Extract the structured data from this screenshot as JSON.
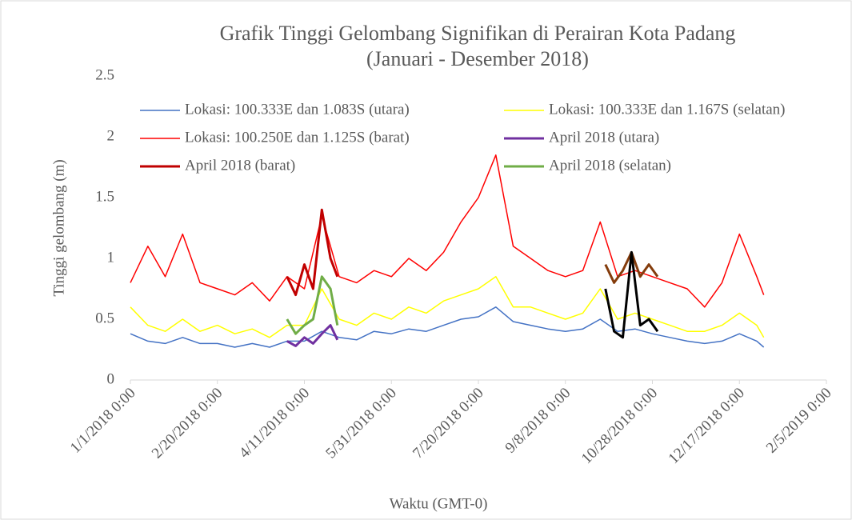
{
  "chart_data": {
    "type": "line",
    "title": "Grafik Tinggi  Gelombang  Signifikan  di Perairan Kota Padang",
    "subtitle": "(Januari  - Desember  2018)",
    "x_label": "Waktu (GMT-0)",
    "y_label": "Tinggi gelombang (m)",
    "x": [
      "1/1/2018 0:00",
      "1/11/2018 0:00",
      "1/21/2018 0:00",
      "1/31/2018 0:00",
      "2/10/2018 0:00",
      "2/20/2018 0:00",
      "3/2/2018 0:00",
      "3/12/2018 0:00",
      "3/22/2018 0:00",
      "4/1/2018 0:00",
      "4/11/2018 0:00",
      "4/21/2018 0:00",
      "5/1/2018 0:00",
      "5/11/2018 0:00",
      "5/21/2018 0:00",
      "5/31/2018 0:00",
      "6/10/2018 0:00",
      "6/20/2018 0:00",
      "6/30/2018 0:00",
      "7/10/2018 0:00",
      "7/20/2018 0:00",
      "7/30/2018 0:00",
      "8/9/2018 0:00",
      "8/19/2018 0:00",
      "8/29/2018 0:00",
      "9/8/2018 0:00",
      "9/18/2018 0:00",
      "9/28/2018 0:00",
      "10/8/2018 0:00",
      "10/18/2018 0:00",
      "10/28/2018 0:00",
      "11/7/2018 0:00",
      "11/17/2018 0:00",
      "11/27/2018 0:00",
      "12/7/2018 0:00",
      "12/17/2018 0:00",
      "12/27/2018 0:00",
      "12/31/2018 0:00"
    ],
    "series": [
      {
        "name": "Lokasi: 100.333E dan 1.083S (utara)",
        "color": "#4472c4",
        "line_width": 1.5,
        "values": [
          0.38,
          0.32,
          0.3,
          0.35,
          0.3,
          0.3,
          0.27,
          0.3,
          0.27,
          0.32,
          0.32,
          0.4,
          0.35,
          0.33,
          0.4,
          0.38,
          0.42,
          0.4,
          0.45,
          0.5,
          0.52,
          0.6,
          0.48,
          0.45,
          0.42,
          0.4,
          0.42,
          0.5,
          0.4,
          0.42,
          0.38,
          0.35,
          0.32,
          0.3,
          0.32,
          0.38,
          0.32,
          0.27
        ]
      },
      {
        "name": "Lokasi: 100.333E dan 1.167S (selatan)",
        "color": "#ffff00",
        "line_width": 1.5,
        "values": [
          0.6,
          0.45,
          0.4,
          0.5,
          0.4,
          0.45,
          0.38,
          0.42,
          0.35,
          0.45,
          0.45,
          0.75,
          0.5,
          0.45,
          0.55,
          0.5,
          0.6,
          0.55,
          0.65,
          0.7,
          0.75,
          0.85,
          0.6,
          0.6,
          0.55,
          0.5,
          0.55,
          0.75,
          0.5,
          0.55,
          0.5,
          0.45,
          0.4,
          0.4,
          0.45,
          0.55,
          0.45,
          0.35
        ]
      },
      {
        "name": "Lokasi: 100.250E dan 1.125S (barat)",
        "color": "#ff0000",
        "line_width": 1.5,
        "values": [
          0.8,
          1.1,
          0.85,
          1.2,
          0.8,
          0.75,
          0.7,
          0.8,
          0.65,
          0.85,
          0.75,
          1.35,
          0.85,
          0.8,
          0.9,
          0.85,
          1.0,
          0.9,
          1.05,
          1.3,
          1.5,
          1.85,
          1.1,
          1.0,
          0.9,
          0.85,
          0.9,
          1.3,
          0.85,
          0.9,
          0.85,
          0.8,
          0.75,
          0.6,
          0.8,
          1.2,
          0.85,
          0.7
        ]
      },
      {
        "name": "April 2018 (utara)",
        "color": "#7030a0",
        "line_width": 3,
        "x": [
          "4/1/2018 0:00",
          "4/6/2018 0:00",
          "4/11/2018 0:00",
          "4/16/2018 0:00",
          "4/21/2018 0:00",
          "4/26/2018 0:00",
          "4/30/2018 0:00"
        ],
        "values": [
          0.32,
          0.28,
          0.35,
          0.3,
          0.38,
          0.45,
          0.33
        ]
      },
      {
        "name": "April 2018 (barat)",
        "color": "#c00000",
        "line_width": 3,
        "x": [
          "4/1/2018 0:00",
          "4/6/2018 0:00",
          "4/11/2018 0:00",
          "4/16/2018 0:00",
          "4/21/2018 0:00",
          "4/26/2018 0:00",
          "4/30/2018 0:00"
        ],
        "values": [
          0.85,
          0.7,
          0.95,
          0.75,
          1.4,
          1.0,
          0.85
        ]
      },
      {
        "name": "April 2018 (selatan)",
        "color": "#70ad47",
        "line_width": 3,
        "x": [
          "4/1/2018 0:00",
          "4/6/2018 0:00",
          "4/11/2018 0:00",
          "4/16/2018 0:00",
          "4/21/2018 0:00",
          "4/26/2018 0:00",
          "4/30/2018 0:00"
        ],
        "values": [
          0.5,
          0.38,
          0.45,
          0.5,
          0.85,
          0.75,
          0.45
        ]
      },
      {
        "color": "#843c0c",
        "line_width": 3,
        "x": [
          "10/1/2018 0:00",
          "10/6/2018 0:00",
          "10/11/2018 0:00",
          "10/16/2018 0:00",
          "10/21/2018 0:00",
          "10/26/2018 0:00",
          "10/31/2018 0:00"
        ],
        "values": [
          0.95,
          0.8,
          0.9,
          1.05,
          0.85,
          0.95,
          0.85
        ]
      },
      {
        "color": "#000000",
        "line_width": 3,
        "x": [
          "10/1/2018 0:00",
          "10/6/2018 0:00",
          "10/11/2018 0:00",
          "10/16/2018 0:00",
          "10/21/2018 0:00",
          "10/26/2018 0:00",
          "10/31/2018 0:00"
        ],
        "values": [
          0.75,
          0.4,
          0.35,
          1.05,
          0.45,
          0.5,
          0.4
        ]
      }
    ],
    "xlim": [
      "1/1/2018 0:00",
      "2/5/2019 0:00"
    ],
    "xticks": [
      "1/1/2018 0:00",
      "2/20/2018 0:00",
      "4/11/2018 0:00",
      "5/31/2018 0:00",
      "7/20/2018 0:00",
      "9/8/2018 0:00",
      "10/28/2018 0:00",
      "12/17/2018 0:00",
      "2/5/2019 0:00"
    ],
    "ylim": [
      0,
      2.5
    ],
    "yticks": [
      0,
      0.5,
      1,
      1.5,
      2,
      2.5
    ],
    "grid": false,
    "legend": "top"
  }
}
